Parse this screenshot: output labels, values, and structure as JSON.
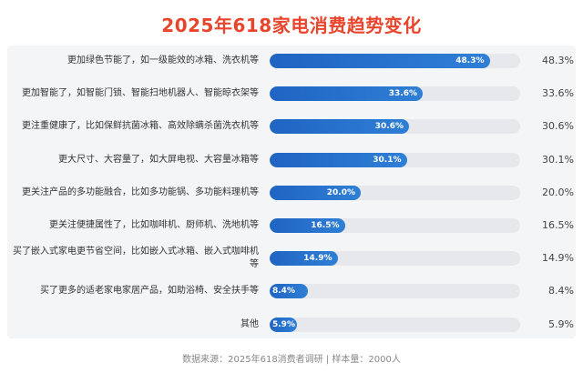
{
  "title": "2025年618家电消费趋势变化",
  "footer": "数据来源：2025年618消费者调研 | 样本量：2000人",
  "colors": {
    "title": "#e8452c",
    "bar": "#2f7fd6",
    "track": "#e6e8ec",
    "panel": "#f4f5f7"
  },
  "chart_data": {
    "type": "bar",
    "orientation": "horizontal",
    "categories": [
      "更加绿色节能了，如一级能效的冰箱、洗衣机等",
      "更加智能了，如智能门锁、智能扫地机器人、智能晾衣架等",
      "更注重健康了，比如保鲜抗菌冰箱、高效除螨杀菌洗衣机等",
      "更大尺寸、大容量了，如大屏电视、大容量冰箱等",
      "更关注产品的多功能融合，比如多功能锅、多功能料理机等",
      "更关注便捷属性了，比如咖啡机、厨师机、洗地机等",
      "买了嵌入式家电更节省空间，比如嵌入式冰箱、嵌入式咖啡机等",
      "买了更多的适老家电家居产品，如助浴椅、安全扶手等",
      "其他"
    ],
    "values": [
      48.3,
      33.6,
      30.6,
      30.1,
      20.0,
      16.5,
      14.9,
      8.4,
      5.9
    ],
    "value_labels": [
      "48.3%",
      "33.6%",
      "30.6%",
      "30.1%",
      "20.0%",
      "16.5%",
      "14.9%",
      "8.4%",
      "5.9%"
    ],
    "xlim": [
      0,
      55
    ],
    "unit": "%"
  }
}
